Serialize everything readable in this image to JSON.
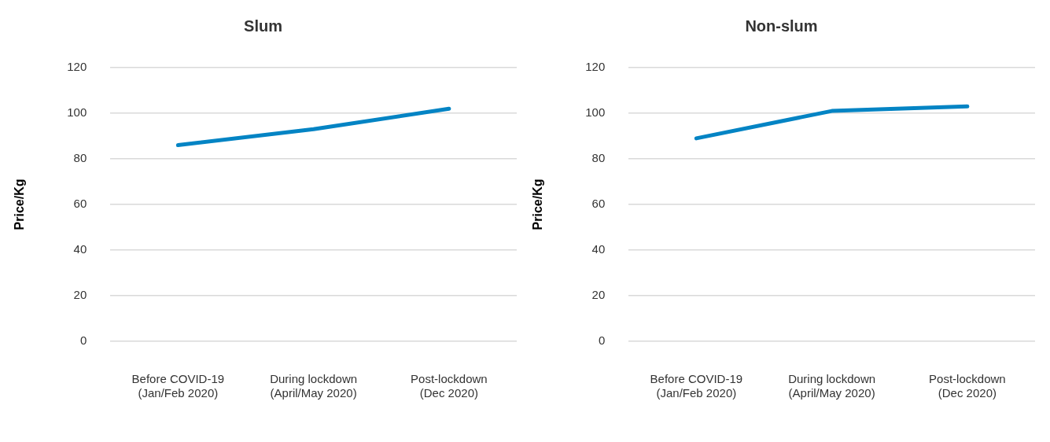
{
  "chart_data": [
    {
      "type": "line",
      "title": "Slum",
      "ylabel": "Price/Kg",
      "categories": [
        "Before COVID-19\n(Jan/Feb 2020)",
        "During lockdown\n(April/May 2020)",
        "Post-lockdown\n(Dec 2020)"
      ],
      "series": [
        {
          "color": "#0484c4",
          "values": [
            86,
            93,
            102
          ]
        }
      ],
      "ylim": [
        0,
        120
      ],
      "yticks": [
        0,
        20,
        40,
        60,
        80,
        100,
        120
      ],
      "grid": "y",
      "legend": false,
      "marker": "none"
    },
    {
      "type": "line",
      "title": "Non-slum",
      "ylabel": "Price/Kg",
      "categories": [
        "Before COVID-19\n(Jan/Feb 2020)",
        "During lockdown\n(April/May 2020)",
        "Post-lockdown\n(Dec 2020)"
      ],
      "series": [
        {
          "color": "#0484c4",
          "values": [
            89,
            101,
            103
          ]
        }
      ],
      "ylim": [
        0,
        120
      ],
      "yticks": [
        0,
        20,
        40,
        60,
        80,
        100,
        120
      ],
      "grid": "y",
      "legend": false,
      "marker": "none"
    }
  ]
}
